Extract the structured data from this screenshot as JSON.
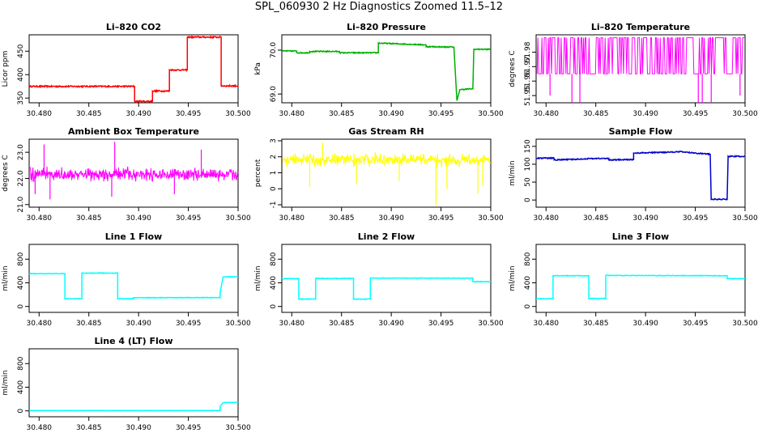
{
  "title": "SPL_060930  2 Hz Diagnostics Zoomed 11.5–12",
  "chart_data": [
    {
      "type": "line",
      "title": "Li–820 CO2",
      "ylabel": "Licor ppm",
      "color": "#ff0000",
      "xlim": [
        30.479,
        30.5
      ],
      "ylim": [
        340,
        485
      ],
      "xticks": [
        "30.480",
        "30.485",
        "30.490",
        "30.495",
        "30.500"
      ],
      "yticks": [
        "350",
        "400",
        "450"
      ],
      "noise": 1.5,
      "series": [
        {
          "x": 30.479,
          "y": 375
        },
        {
          "x": 30.4896,
          "y": 375
        },
        {
          "x": 30.4896,
          "y": 343
        },
        {
          "x": 30.4914,
          "y": 343
        },
        {
          "x": 30.4914,
          "y": 365
        },
        {
          "x": 30.4931,
          "y": 365
        },
        {
          "x": 30.4931,
          "y": 410
        },
        {
          "x": 30.4949,
          "y": 410
        },
        {
          "x": 30.4949,
          "y": 480
        },
        {
          "x": 30.4983,
          "y": 480
        },
        {
          "x": 30.4983,
          "y": 376
        },
        {
          "x": 30.5,
          "y": 376
        }
      ]
    },
    {
      "type": "line",
      "title": "Li–820 Pressure",
      "ylabel": "kPa",
      "color": "#00b000",
      "xlim": [
        30.479,
        30.5
      ],
      "ylim": [
        68.8,
        70.35
      ],
      "xticks": [
        "30.480",
        "30.485",
        "30.490",
        "30.495",
        "30.500"
      ],
      "yticks": [
        "69.0",
        "70.0"
      ],
      "noise": 0.012,
      "series": [
        {
          "x": 30.479,
          "y": 69.98
        },
        {
          "x": 30.4805,
          "y": 69.98
        },
        {
          "x": 30.4805,
          "y": 69.94
        },
        {
          "x": 30.4818,
          "y": 69.94
        },
        {
          "x": 30.4818,
          "y": 69.97
        },
        {
          "x": 30.4848,
          "y": 69.97
        },
        {
          "x": 30.4848,
          "y": 69.94
        },
        {
          "x": 30.4887,
          "y": 69.94
        },
        {
          "x": 30.4887,
          "y": 70.16
        },
        {
          "x": 30.4912,
          "y": 70.14
        },
        {
          "x": 30.4935,
          "y": 70.12
        },
        {
          "x": 30.4935,
          "y": 70.08
        },
        {
          "x": 30.4963,
          "y": 70.07
        },
        {
          "x": 30.4966,
          "y": 68.85
        },
        {
          "x": 30.4969,
          "y": 69.1
        },
        {
          "x": 30.4982,
          "y": 69.12
        },
        {
          "x": 30.4983,
          "y": 70.02
        },
        {
          "x": 30.5,
          "y": 70.02
        }
      ]
    },
    {
      "type": "line",
      "title": "Li–820 Temperature",
      "ylabel": "degrees C",
      "color": "#ff00ff",
      "style": "binary",
      "xlim": [
        30.479,
        30.5
      ],
      "ylim": [
        51.945,
        51.992
      ],
      "xticks": [
        "30.480",
        "30.485",
        "30.490",
        "30.495",
        "30.500"
      ],
      "yticks": [
        "51.95",
        "51.96",
        "51.97",
        "51.98"
      ],
      "levels": [
        51.99,
        51.965
      ],
      "spikes": [
        {
          "x": 30.4826,
          "y": 51.945
        },
        {
          "x": 30.4834,
          "y": 51.945
        },
        {
          "x": 30.4804,
          "y": 51.95
        },
        {
          "x": 30.4953,
          "y": 51.945
        },
        {
          "x": 30.4957,
          "y": 51.945
        },
        {
          "x": 30.4966,
          "y": 51.945
        },
        {
          "x": 30.4995,
          "y": 51.95
        }
      ]
    },
    {
      "type": "line",
      "title": "Ambient Box Temperature",
      "ylabel": "degrees C",
      "color": "#ff00ff",
      "style": "noise",
      "xlim": [
        30.479,
        30.5
      ],
      "ylim": [
        20.9,
        23.5
      ],
      "xticks": [
        "30.480",
        "30.485",
        "30.490",
        "30.495",
        "30.500"
      ],
      "yticks": [
        "21.0",
        "22.0",
        "23.0"
      ],
      "center": 22.15,
      "amplitude": 0.35,
      "spikes": [
        {
          "x": 30.4796,
          "y": 21.4
        },
        {
          "x": 30.4805,
          "y": 23.3
        },
        {
          "x": 30.4811,
          "y": 21.2
        },
        {
          "x": 30.4876,
          "y": 23.4
        },
        {
          "x": 30.4873,
          "y": 21.3
        },
        {
          "x": 30.4936,
          "y": 21.4
        },
        {
          "x": 30.4963,
          "y": 23.1
        }
      ]
    },
    {
      "type": "line",
      "title": "Gas Stream RH",
      "ylabel": "percent",
      "color": "#ffff00",
      "style": "noise",
      "xlim": [
        30.479,
        30.5
      ],
      "ylim": [
        -1.15,
        3.1
      ],
      "xticks": [
        "30.480",
        "30.485",
        "30.490",
        "30.495",
        "30.500"
      ],
      "yticks": [
        "-1",
        "0",
        "1",
        "2",
        "3"
      ],
      "center": 1.8,
      "amplitude": 0.55,
      "spikes": [
        {
          "x": 30.4818,
          "y": 0.1
        },
        {
          "x": 30.4865,
          "y": 0.3
        },
        {
          "x": 30.4945,
          "y": -1.0
        },
        {
          "x": 30.4956,
          "y": 0.0
        },
        {
          "x": 30.4987,
          "y": -0.3
        },
        {
          "x": 30.4992,
          "y": 0.2
        },
        {
          "x": 30.4908,
          "y": 0.5
        },
        {
          "x": 30.4831,
          "y": 2.9
        }
      ]
    },
    {
      "type": "line",
      "title": "Sample Flow",
      "ylabel": "ml/min",
      "color": "#0000cc",
      "xlim": [
        30.479,
        30.5
      ],
      "ylim": [
        -20,
        170
      ],
      "xticks": [
        "30.480",
        "30.485",
        "30.490",
        "30.495",
        "30.500"
      ],
      "yticks": [
        "0",
        "50",
        "100",
        "150"
      ],
      "noise": 1.5,
      "series": [
        {
          "x": 30.479,
          "y": 117
        },
        {
          "x": 30.4808,
          "y": 117
        },
        {
          "x": 30.4808,
          "y": 112
        },
        {
          "x": 30.4832,
          "y": 114
        },
        {
          "x": 30.4845,
          "y": 116
        },
        {
          "x": 30.4863,
          "y": 116
        },
        {
          "x": 30.4863,
          "y": 112
        },
        {
          "x": 30.4888,
          "y": 113
        },
        {
          "x": 30.4888,
          "y": 131
        },
        {
          "x": 30.4913,
          "y": 133
        },
        {
          "x": 30.4934,
          "y": 135
        },
        {
          "x": 30.4965,
          "y": 128
        },
        {
          "x": 30.4966,
          "y": 2
        },
        {
          "x": 30.4982,
          "y": 2
        },
        {
          "x": 30.4983,
          "y": 122
        },
        {
          "x": 30.5,
          "y": 122
        }
      ]
    },
    {
      "type": "line",
      "title": "Line 1 Flow",
      "ylabel": "ml/min",
      "color": "#00ffff",
      "xlim": [
        30.479,
        30.5
      ],
      "ylim": [
        -100,
        1050
      ],
      "xticks": [
        "30.480",
        "30.485",
        "30.490",
        "30.495",
        "30.500"
      ],
      "yticks": [
        "0",
        "400",
        "800"
      ],
      "noise": 5,
      "series": [
        {
          "x": 30.479,
          "y": 555
        },
        {
          "x": 30.4826,
          "y": 555
        },
        {
          "x": 30.4826,
          "y": 130
        },
        {
          "x": 30.4843,
          "y": 130
        },
        {
          "x": 30.4843,
          "y": 565
        },
        {
          "x": 30.4879,
          "y": 565
        },
        {
          "x": 30.4879,
          "y": 130
        },
        {
          "x": 30.4895,
          "y": 132
        },
        {
          "x": 30.4895,
          "y": 148
        },
        {
          "x": 30.4982,
          "y": 150
        },
        {
          "x": 30.4982,
          "y": 250
        },
        {
          "x": 30.4985,
          "y": 500
        },
        {
          "x": 30.5,
          "y": 505
        }
      ]
    },
    {
      "type": "line",
      "title": "Line 2 Flow",
      "ylabel": "ml/min",
      "color": "#00ffff",
      "xlim": [
        30.479,
        30.5
      ],
      "ylim": [
        -100,
        1050
      ],
      "xticks": [
        "30.480",
        "30.485",
        "30.490",
        "30.495",
        "30.500"
      ],
      "yticks": [
        "0",
        "400",
        "800"
      ],
      "noise": 5,
      "series": [
        {
          "x": 30.479,
          "y": 470
        },
        {
          "x": 30.4807,
          "y": 470
        },
        {
          "x": 30.4807,
          "y": 125
        },
        {
          "x": 30.4824,
          "y": 125
        },
        {
          "x": 30.4824,
          "y": 475
        },
        {
          "x": 30.4862,
          "y": 475
        },
        {
          "x": 30.4862,
          "y": 125
        },
        {
          "x": 30.4879,
          "y": 125
        },
        {
          "x": 30.4879,
          "y": 480
        },
        {
          "x": 30.4982,
          "y": 478
        },
        {
          "x": 30.4982,
          "y": 420
        },
        {
          "x": 30.5,
          "y": 420
        }
      ]
    },
    {
      "type": "line",
      "title": "Line 3 Flow",
      "ylabel": "ml/min",
      "color": "#00ffff",
      "xlim": [
        30.479,
        30.5
      ],
      "ylim": [
        -100,
        1050
      ],
      "xticks": [
        "30.480",
        "30.485",
        "30.490",
        "30.495",
        "30.500"
      ],
      "yticks": [
        "0",
        "400",
        "800"
      ],
      "noise": 5,
      "series": [
        {
          "x": 30.479,
          "y": 130
        },
        {
          "x": 30.4807,
          "y": 130
        },
        {
          "x": 30.4807,
          "y": 520
        },
        {
          "x": 30.4843,
          "y": 520
        },
        {
          "x": 30.4843,
          "y": 135
        },
        {
          "x": 30.486,
          "y": 135
        },
        {
          "x": 30.486,
          "y": 525
        },
        {
          "x": 30.4982,
          "y": 520
        },
        {
          "x": 30.4982,
          "y": 470
        },
        {
          "x": 30.5,
          "y": 470
        }
      ]
    },
    {
      "type": "line",
      "title": "Line 4 (LT) Flow",
      "ylabel": "ml/min",
      "color": "#00ffff",
      "xlim": [
        30.479,
        30.5
      ],
      "ylim": [
        -100,
        1050
      ],
      "xticks": [
        "30.480",
        "30.485",
        "30.490",
        "30.495",
        "30.500"
      ],
      "yticks": [
        "0",
        "400",
        "800"
      ],
      "noise": 2,
      "series": [
        {
          "x": 30.479,
          "y": 5
        },
        {
          "x": 30.4982,
          "y": 5
        },
        {
          "x": 30.4982,
          "y": 80
        },
        {
          "x": 30.4985,
          "y": 140
        },
        {
          "x": 30.5,
          "y": 145
        }
      ]
    }
  ]
}
